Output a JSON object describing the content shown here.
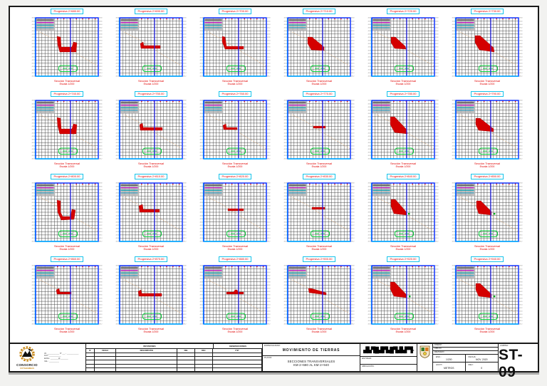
{
  "sheet": {
    "discipline_label": "ESPECIALIDAD:",
    "discipline": "MOVIMIENTO DE TIERRAS",
    "plan_label": "PLANO:",
    "plan_title_line1": "SECCIONES TRANSVERSALES",
    "plan_title_line2": "KM-2+680 AL KM-2+940",
    "number_label": "LAMINA:",
    "number": "ST- 09"
  },
  "consortium": {
    "name": "CONSORCIO",
    "subname": "COTABAMBAS",
    "address_lines": [
      "JR. ____________ N° ___ - ____________",
      "RUC: ____________",
      "EMAIL: ________@________",
      "CEL.: __________"
    ]
  },
  "client": {
    "logotype_glyphs": "▟▙▜█▟▛▙█▜▟▙▛▜-",
    "field1_label": "ENTIDAD:",
    "field2_label": "UBICACIÓN:"
  },
  "revisions": {
    "title": "REVISIONES",
    "right_title": "OBSERVACIONES",
    "columns": [
      "N°",
      "FECHA",
      "DESCRIPCIÓN",
      "DIB.",
      "REV.",
      "V°B°"
    ],
    "empty_rows": 5
  },
  "info": {
    "rows": [
      {
        "label": "DISEÑO:"
      },
      {
        "label": "DIBUJO:"
      },
      {
        "label": "REVISADO:"
      }
    ],
    "escala_label": "ESC.:",
    "escala": "1/200",
    "fecha_label": "FECHA:",
    "fecha": "NOV. 2020",
    "acot_label": "ACOT.:",
    "acot": "METROS",
    "rev_label": "REV.:",
    "rev": "0"
  },
  "charts": {
    "caption_line1": "Sección Transversal",
    "caption_line2": "Escala 1/200",
    "colors": {
      "frame": "#0026ff",
      "accent": "#00b4ff",
      "centerline": "#1a1aff",
      "section_fill": "#d40000",
      "green": "#00cc33",
      "terrain": "#dd9955",
      "title_border": "#17c3ea",
      "title_text": "#e00000"
    },
    "items": [
      {
        "title": "Progresiva 2+680.00",
        "shape": [
          [
            36,
            30
          ],
          [
            41,
            31
          ],
          [
            42,
            45
          ],
          [
            57,
            45
          ],
          [
            59,
            38
          ],
          [
            64,
            39
          ],
          [
            63,
            52
          ],
          [
            40,
            52
          ],
          [
            37,
            42
          ]
        ],
        "green_dot": null
      },
      {
        "title": "Progresiva 2+690.00",
        "shape": [
          [
            35,
            40
          ],
          [
            39,
            38
          ],
          [
            40,
            43
          ],
          [
            63,
            43
          ],
          [
            63,
            47
          ],
          [
            36,
            47
          ]
        ],
        "green_dot": null
      },
      {
        "title": "Progresiva 2+700.00",
        "shape": [
          [
            32,
            30
          ],
          [
            36,
            31
          ],
          [
            38,
            44
          ],
          [
            62,
            44
          ],
          [
            62,
            48
          ],
          [
            36,
            48
          ],
          [
            32,
            38
          ]
        ],
        "green_dot": null
      },
      {
        "title": "Progresiva 2+710.00",
        "shape": [
          [
            34,
            31
          ],
          [
            40,
            31
          ],
          [
            57,
            45
          ],
          [
            57,
            50
          ],
          [
            39,
            49
          ],
          [
            34,
            40
          ]
        ],
        "green_dot": null
      },
      {
        "title": "Progresiva 2+720.00",
        "shape": [
          [
            33,
            31
          ],
          [
            39,
            31
          ],
          [
            53,
            44
          ],
          [
            54,
            48
          ],
          [
            38,
            47
          ],
          [
            33,
            39
          ]
        ],
        "green_dot": null
      },
      {
        "title": "Progresiva 2+730.00",
        "shape": [
          [
            33,
            29
          ],
          [
            40,
            29
          ],
          [
            59,
            46
          ],
          [
            60,
            52
          ],
          [
            39,
            49
          ],
          [
            33,
            39
          ]
        ],
        "green_dot": null
      },
      {
        "title": "Progresiva 2+740.00",
        "shape": [
          [
            36,
            28
          ],
          [
            41,
            29
          ],
          [
            42,
            44
          ],
          [
            57,
            44
          ],
          [
            59,
            37
          ],
          [
            64,
            38
          ],
          [
            63,
            51
          ],
          [
            40,
            51
          ],
          [
            37,
            40
          ]
        ],
        "green_dot": null
      },
      {
        "title": "Progresiva 2+750.00",
        "shape": [
          [
            34,
            38
          ],
          [
            38,
            36
          ],
          [
            39,
            42
          ],
          [
            66,
            42
          ],
          [
            66,
            46
          ],
          [
            35,
            46
          ]
        ],
        "green_dot": null
      },
      {
        "title": "Progresiva 2+760.00",
        "shape": [
          [
            33,
            39
          ],
          [
            37,
            37
          ],
          [
            38,
            42
          ],
          [
            53,
            42
          ],
          [
            53,
            45
          ],
          [
            34,
            45
          ]
        ],
        "green_dot": null
      },
      {
        "title": "Progresiva 2+770.00",
        "shape": [
          [
            42,
            40
          ],
          [
            59,
            40
          ],
          [
            59,
            43
          ],
          [
            42,
            43
          ]
        ],
        "green_dot": null
      },
      {
        "title": "Progresiva 2+780.00",
        "shape": [
          [
            32,
            27
          ],
          [
            38,
            27
          ],
          [
            55,
            45
          ],
          [
            56,
            51
          ],
          [
            38,
            49
          ],
          [
            32,
            38
          ]
        ],
        "green_dot": null
      },
      {
        "title": "Progresiva 2+790.00",
        "shape": [
          [
            34,
            29
          ],
          [
            40,
            29
          ],
          [
            59,
            44
          ],
          [
            59,
            48
          ],
          [
            38,
            46
          ],
          [
            34,
            38
          ]
        ],
        "green_dot": null
      },
      {
        "title": "Progresiva 2+800.00",
        "shape": [
          [
            36,
            28
          ],
          [
            41,
            29
          ],
          [
            41,
            45
          ],
          [
            44,
            51
          ],
          [
            55,
            51
          ],
          [
            57,
            41
          ],
          [
            62,
            42
          ],
          [
            60,
            55
          ],
          [
            42,
            56
          ],
          [
            37,
            45
          ]
        ],
        "green_dot": null
      },
      {
        "title": "Progresiva 2+810.00",
        "shape": [
          [
            33,
            36
          ],
          [
            38,
            34
          ],
          [
            39,
            41
          ],
          [
            62,
            41
          ],
          [
            62,
            45
          ],
          [
            34,
            45
          ]
        ],
        "green_dot": null
      },
      {
        "title": "Progresiva 2+820.00",
        "shape": [
          [
            40,
            40
          ],
          [
            62,
            40
          ],
          [
            62,
            43
          ],
          [
            40,
            43
          ]
        ],
        "green_dot": null
      },
      {
        "title": "Progresiva 2+830.00",
        "shape": [
          [
            40,
            38
          ],
          [
            58,
            38
          ],
          [
            58,
            41
          ],
          [
            40,
            41
          ]
        ],
        "green_dot": null
      },
      {
        "title": "Progresiva 2+840.00",
        "shape": [
          [
            33,
            27
          ],
          [
            39,
            27
          ],
          [
            54,
            44
          ],
          [
            55,
            49
          ],
          [
            37,
            47
          ],
          [
            33,
            37
          ]
        ],
        "green_dot": [
          57,
          46
        ]
      },
      {
        "title": "Progresiva 2+850.00",
        "shape": [
          [
            35,
            29
          ],
          [
            41,
            29
          ],
          [
            56,
            44
          ],
          [
            56,
            49
          ],
          [
            38,
            47
          ],
          [
            35,
            38
          ]
        ],
        "green_dot": [
          59,
          46
        ]
      },
      {
        "title": "Progresiva 2+860.00",
        "shape": [
          [
            35,
            38
          ],
          [
            39,
            36
          ],
          [
            40,
            41
          ],
          [
            56,
            41
          ],
          [
            56,
            44
          ],
          [
            36,
            44
          ]
        ],
        "green_dot": null
      },
      {
        "title": "Progresiva 2+870.00",
        "shape": [
          [
            32,
            40
          ],
          [
            36,
            38
          ],
          [
            37,
            43
          ],
          [
            65,
            43
          ],
          [
            65,
            47
          ],
          [
            33,
            47
          ]
        ],
        "green_dot": null
      },
      {
        "title": "Progresiva 2+880.00",
        "shape": [
          [
            38,
            41
          ],
          [
            48,
            41
          ],
          [
            50,
            38
          ],
          [
            53,
            38
          ],
          [
            54,
            41
          ],
          [
            62,
            41
          ],
          [
            62,
            44
          ],
          [
            38,
            44
          ]
        ],
        "green_dot": null
      },
      {
        "title": "Progresiva 2+900.00",
        "shape": [
          [
            35,
            36
          ],
          [
            39,
            36
          ],
          [
            60,
            42
          ],
          [
            60,
            45
          ],
          [
            36,
            42
          ]
        ],
        "green_dot": null
      },
      {
        "title": "Progresiva 2+920.00",
        "shape": [
          [
            32,
            27
          ],
          [
            38,
            27
          ],
          [
            54,
            44
          ],
          [
            55,
            49
          ],
          [
            37,
            47
          ],
          [
            32,
            37
          ]
        ],
        "green_dot": [
          58,
          46
        ]
      },
      {
        "title": "Progresiva 2+940.00",
        "shape": [
          [
            34,
            29
          ],
          [
            40,
            29
          ],
          [
            56,
            44
          ],
          [
            56,
            49
          ],
          [
            38,
            47
          ],
          [
            34,
            38
          ]
        ],
        "green_dot": [
          59,
          46
        ]
      }
    ]
  }
}
